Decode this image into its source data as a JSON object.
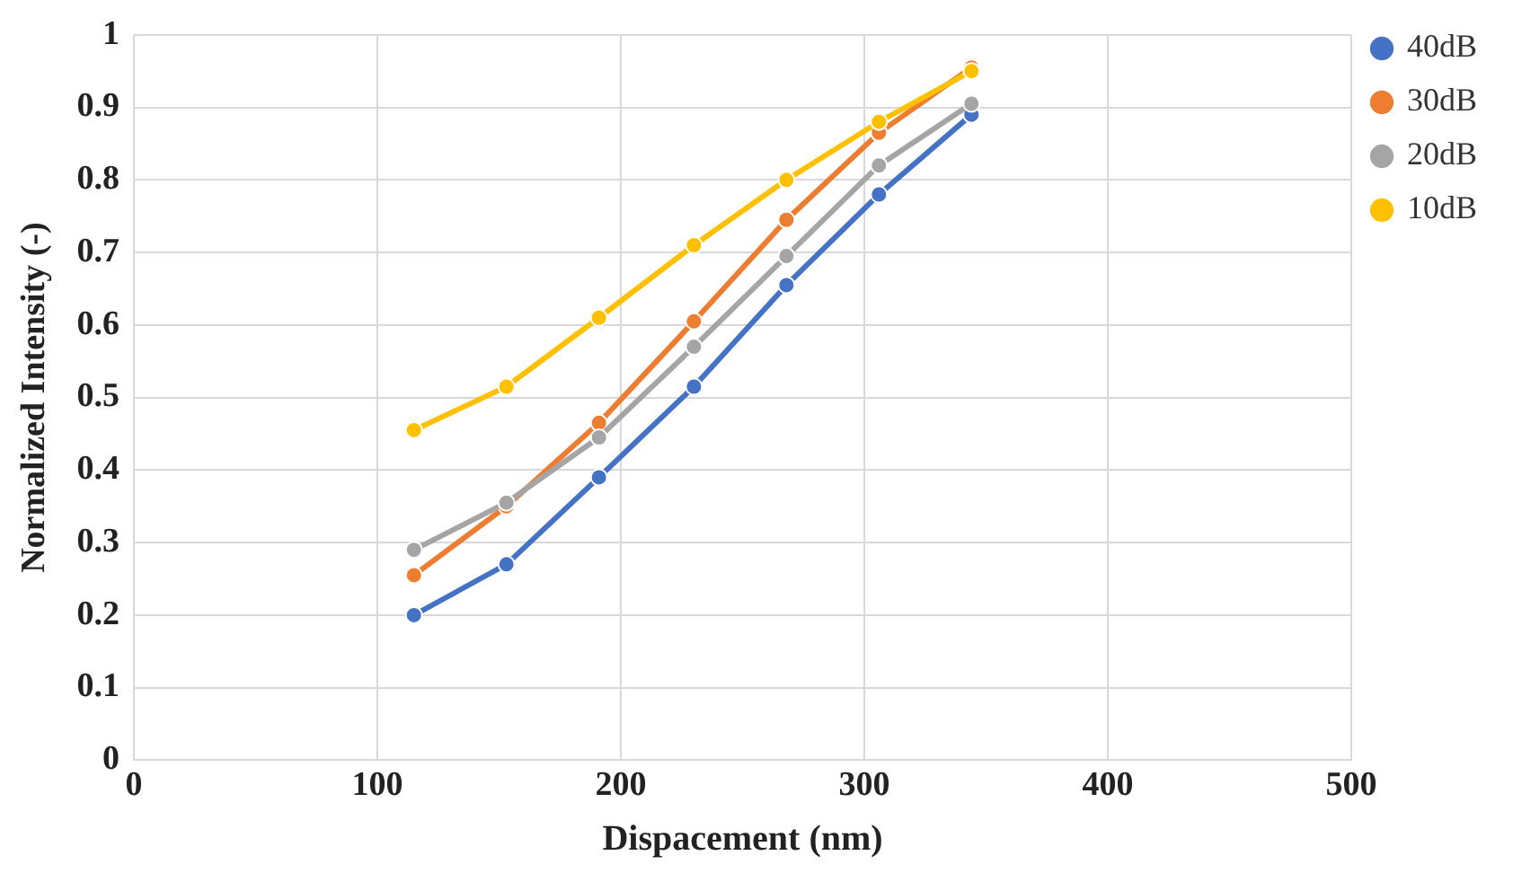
{
  "chart_data": {
    "type": "line",
    "xlabel": "Dispacement (nm)",
    "ylabel": "Normalized Intensity (-)",
    "x": [
      115,
      153,
      191,
      230,
      268,
      306,
      344
    ],
    "series": [
      {
        "name": "40dB",
        "color": "#4472c4",
        "values": [
          0.2,
          0.27,
          0.39,
          0.515,
          0.655,
          0.78,
          0.89
        ]
      },
      {
        "name": "30dB",
        "color": "#ed7d31",
        "values": [
          0.255,
          0.35,
          0.465,
          0.605,
          0.745,
          0.865,
          0.955
        ]
      },
      {
        "name": "20dB",
        "color": "#a5a5a5",
        "values": [
          0.29,
          0.355,
          0.445,
          0.57,
          0.695,
          0.82,
          0.905
        ]
      },
      {
        "name": "10dB",
        "color": "#ffc000",
        "values": [
          0.455,
          0.515,
          0.61,
          0.71,
          0.8,
          0.88,
          0.95
        ]
      }
    ],
    "xlim": [
      0,
      500
    ],
    "xticks": [
      0,
      100,
      200,
      300,
      400,
      500
    ],
    "ylim": [
      0,
      1
    ],
    "yticks": [
      0,
      0.1,
      0.2,
      0.3,
      0.4,
      0.5,
      0.6,
      0.7,
      0.8,
      0.9,
      1
    ],
    "grid": true,
    "legend": "right",
    "marker": "circle",
    "line_style": "solid"
  }
}
